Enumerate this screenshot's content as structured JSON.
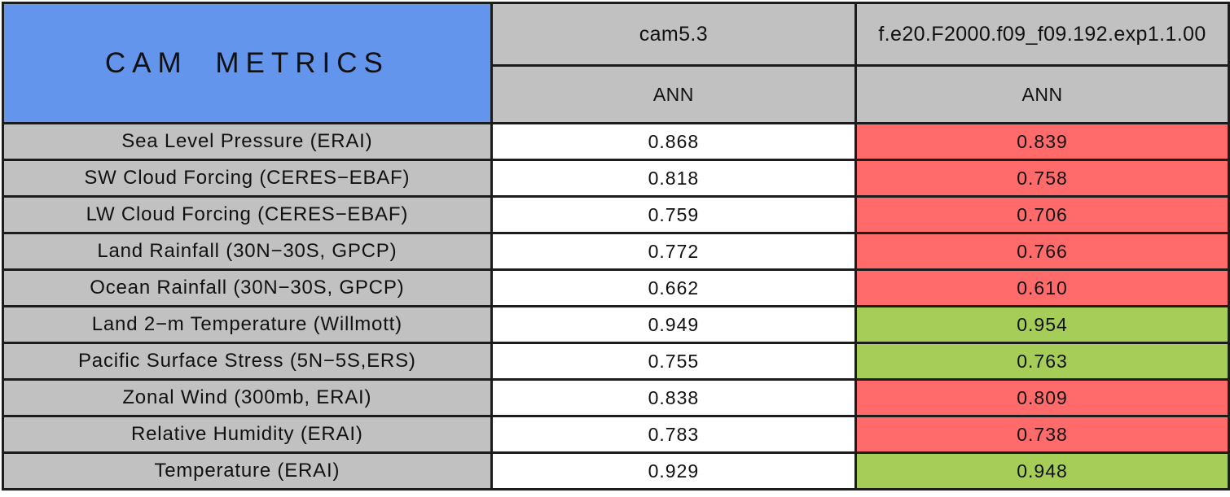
{
  "colors": {
    "title_blue": "#6495ed",
    "header_gray": "#c1c1c1",
    "worse_red": "#ff6b6b",
    "better_green": "#a5cd57",
    "border_black": "#1c1c1c",
    "neutral_white": "#ffffff"
  },
  "chart_data": {
    "type": "table",
    "title": "CAM METRICS",
    "columns": [
      {
        "model": "cam5.3",
        "season": "ANN"
      },
      {
        "model": "f.e20.F2000.f09_f09.192.exp1.1.00",
        "season": "ANN"
      }
    ],
    "rows": [
      {
        "label": "Sea Level Pressure (ERAI)",
        "values": [
          "0.868",
          "0.839"
        ],
        "status": "worse"
      },
      {
        "label": "SW Cloud Forcing (CERES−EBAF)",
        "values": [
          "0.818",
          "0.758"
        ],
        "status": "worse"
      },
      {
        "label": "LW Cloud Forcing (CERES−EBAF)",
        "values": [
          "0.759",
          "0.706"
        ],
        "status": "worse"
      },
      {
        "label": "Land Rainfall (30N−30S, GPCP)",
        "values": [
          "0.772",
          "0.766"
        ],
        "status": "worse"
      },
      {
        "label": "Ocean Rainfall (30N−30S, GPCP)",
        "values": [
          "0.662",
          "0.610"
        ],
        "status": "worse"
      },
      {
        "label": "Land 2−m Temperature (Willmott)",
        "values": [
          "0.949",
          "0.954"
        ],
        "status": "better"
      },
      {
        "label": "Pacific Surface Stress (5N−5S,ERS)",
        "values": [
          "0.755",
          "0.763"
        ],
        "status": "better"
      },
      {
        "label": "Zonal Wind (300mb, ERAI)",
        "values": [
          "0.838",
          "0.809"
        ],
        "status": "worse"
      },
      {
        "label": "Relative Humidity (ERAI)",
        "values": [
          "0.783",
          "0.738"
        ],
        "status": "worse"
      },
      {
        "label": "Temperature (ERAI)",
        "values": [
          "0.929",
          "0.948"
        ],
        "status": "better"
      }
    ]
  }
}
